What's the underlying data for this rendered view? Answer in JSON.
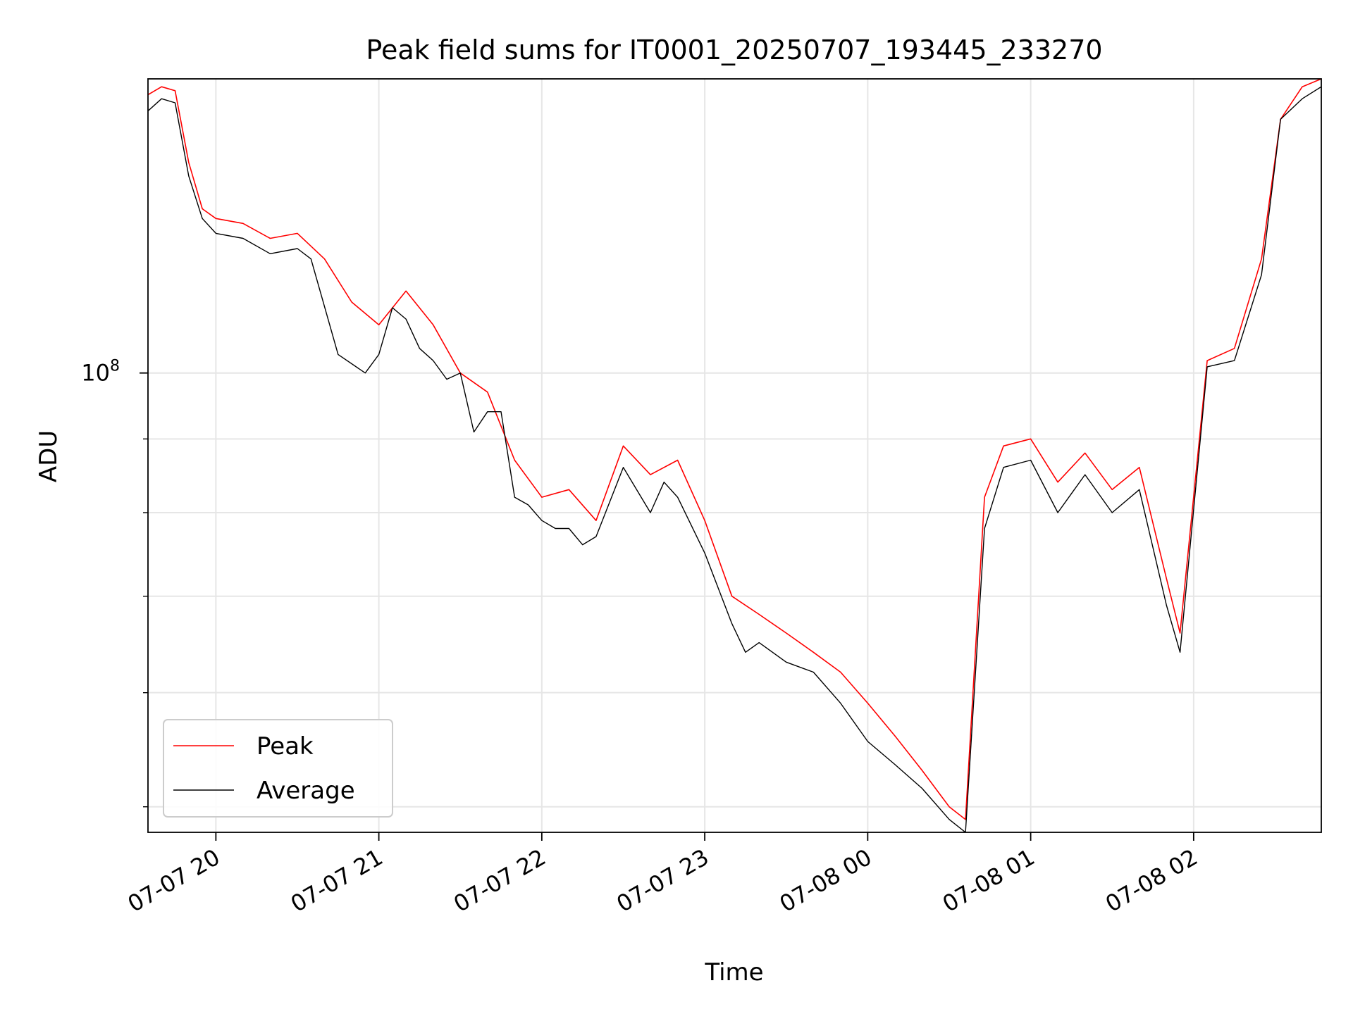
{
  "chart_data": {
    "type": "line",
    "title": "Peak field sums for IT0001_20250707_193445_233270",
    "xlabel": "Time",
    "ylabel": "ADU",
    "y_scale": "log",
    "ylim": [
      48000000,
      160000000
    ],
    "xlim": [
      "2025-07-07 19:35",
      "2025-07-08 02:47"
    ],
    "grid": true,
    "legend_position": "lower-left",
    "x_ticks": [
      {
        "t": "2025-07-07 20:00",
        "label": "07-07 20"
      },
      {
        "t": "2025-07-07 21:00",
        "label": "07-07 21"
      },
      {
        "t": "2025-07-07 22:00",
        "label": "07-07 22"
      },
      {
        "t": "2025-07-07 23:00",
        "label": "07-07 23"
      },
      {
        "t": "2025-07-08 00:00",
        "label": "07-08 00"
      },
      {
        "t": "2025-07-08 01:00",
        "label": "07-08 01"
      },
      {
        "t": "2025-07-08 02:00",
        "label": "07-08 02"
      }
    ],
    "y_major_ticks": [
      {
        "value": 100000000,
        "base": "10",
        "exp": "8"
      }
    ],
    "y_minor_ticks": [
      50000000,
      60000000,
      70000000,
      80000000,
      90000000,
      200000000
    ],
    "series": [
      {
        "name": "Peak",
        "color": "#ff0000",
        "points": [
          [
            "2025-07-07 19:35",
            156000000
          ],
          [
            "2025-07-07 19:40",
            158000000
          ],
          [
            "2025-07-07 19:45",
            157000000
          ],
          [
            "2025-07-07 19:50",
            140000000
          ],
          [
            "2025-07-07 19:55",
            130000000
          ],
          [
            "2025-07-07 20:00",
            128000000
          ],
          [
            "2025-07-07 20:10",
            127000000
          ],
          [
            "2025-07-07 20:20",
            124000000
          ],
          [
            "2025-07-07 20:30",
            125000000
          ],
          [
            "2025-07-07 20:40",
            120000000
          ],
          [
            "2025-07-07 20:50",
            112000000
          ],
          [
            "2025-07-07 21:00",
            108000000
          ],
          [
            "2025-07-07 21:10",
            114000000
          ],
          [
            "2025-07-07 21:20",
            108000000
          ],
          [
            "2025-07-07 21:30",
            100000000
          ],
          [
            "2025-07-07 21:40",
            97000000
          ],
          [
            "2025-07-07 21:50",
            87000000
          ],
          [
            "2025-07-07 22:00",
            82000000
          ],
          [
            "2025-07-07 22:10",
            83000000
          ],
          [
            "2025-07-07 22:20",
            79000000
          ],
          [
            "2025-07-07 22:30",
            89000000
          ],
          [
            "2025-07-07 22:40",
            85000000
          ],
          [
            "2025-07-07 22:50",
            87000000
          ],
          [
            "2025-07-07 23:00",
            79000000
          ],
          [
            "2025-07-07 23:10",
            70000000
          ],
          [
            "2025-07-07 23:20",
            68000000
          ],
          [
            "2025-07-07 23:30",
            66000000
          ],
          [
            "2025-07-07 23:40",
            64000000
          ],
          [
            "2025-07-07 23:50",
            62000000
          ],
          [
            "2025-07-08 00:00",
            59000000
          ],
          [
            "2025-07-08 00:10",
            56000000
          ],
          [
            "2025-07-08 00:20",
            53000000
          ],
          [
            "2025-07-08 00:30",
            50000000
          ],
          [
            "2025-07-08 00:36",
            49000000
          ],
          [
            "2025-07-08 00:43",
            82000000
          ],
          [
            "2025-07-08 00:50",
            89000000
          ],
          [
            "2025-07-08 01:00",
            90000000
          ],
          [
            "2025-07-08 01:10",
            84000000
          ],
          [
            "2025-07-08 01:20",
            88000000
          ],
          [
            "2025-07-08 01:30",
            83000000
          ],
          [
            "2025-07-08 01:40",
            86000000
          ],
          [
            "2025-07-08 01:50",
            72000000
          ],
          [
            "2025-07-08 01:55",
            66000000
          ],
          [
            "2025-07-08 02:05",
            102000000
          ],
          [
            "2025-07-08 02:15",
            104000000
          ],
          [
            "2025-07-08 02:25",
            120000000
          ],
          [
            "2025-07-08 02:32",
            150000000
          ],
          [
            "2025-07-08 02:40",
            158000000
          ],
          [
            "2025-07-08 02:47",
            160000000
          ]
        ]
      },
      {
        "name": "Average",
        "color": "#000000",
        "points": [
          [
            "2025-07-07 19:35",
            152000000
          ],
          [
            "2025-07-07 19:40",
            155000000
          ],
          [
            "2025-07-07 19:45",
            154000000
          ],
          [
            "2025-07-07 19:50",
            137000000
          ],
          [
            "2025-07-07 19:55",
            128000000
          ],
          [
            "2025-07-07 20:00",
            125000000
          ],
          [
            "2025-07-07 20:10",
            124000000
          ],
          [
            "2025-07-07 20:20",
            121000000
          ],
          [
            "2025-07-07 20:30",
            122000000
          ],
          [
            "2025-07-07 20:35",
            120000000
          ],
          [
            "2025-07-07 20:45",
            103000000
          ],
          [
            "2025-07-07 20:55",
            100000000
          ],
          [
            "2025-07-07 21:00",
            103000000
          ],
          [
            "2025-07-07 21:05",
            111000000
          ],
          [
            "2025-07-07 21:10",
            109000000
          ],
          [
            "2025-07-07 21:15",
            104000000
          ],
          [
            "2025-07-07 21:20",
            102000000
          ],
          [
            "2025-07-07 21:25",
            99000000
          ],
          [
            "2025-07-07 21:30",
            100000000
          ],
          [
            "2025-07-07 21:35",
            91000000
          ],
          [
            "2025-07-07 21:40",
            94000000
          ],
          [
            "2025-07-07 21:45",
            94000000
          ],
          [
            "2025-07-07 21:50",
            82000000
          ],
          [
            "2025-07-07 21:55",
            81000000
          ],
          [
            "2025-07-07 22:00",
            79000000
          ],
          [
            "2025-07-07 22:05",
            78000000
          ],
          [
            "2025-07-07 22:10",
            78000000
          ],
          [
            "2025-07-07 22:15",
            76000000
          ],
          [
            "2025-07-07 22:20",
            77000000
          ],
          [
            "2025-07-07 22:30",
            86000000
          ],
          [
            "2025-07-07 22:40",
            80000000
          ],
          [
            "2025-07-07 22:45",
            84000000
          ],
          [
            "2025-07-07 22:50",
            82000000
          ],
          [
            "2025-07-07 23:00",
            75000000
          ],
          [
            "2025-07-07 23:10",
            67000000
          ],
          [
            "2025-07-07 23:15",
            64000000
          ],
          [
            "2025-07-07 23:20",
            65000000
          ],
          [
            "2025-07-07 23:30",
            63000000
          ],
          [
            "2025-07-07 23:40",
            62000000
          ],
          [
            "2025-07-07 23:50",
            59000000
          ],
          [
            "2025-07-08 00:00",
            55500000
          ],
          [
            "2025-07-08 00:10",
            53500000
          ],
          [
            "2025-07-08 00:20",
            51500000
          ],
          [
            "2025-07-08 00:30",
            49000000
          ],
          [
            "2025-07-08 00:36",
            48000000
          ],
          [
            "2025-07-08 00:43",
            78000000
          ],
          [
            "2025-07-08 00:50",
            86000000
          ],
          [
            "2025-07-08 01:00",
            87000000
          ],
          [
            "2025-07-08 01:10",
            80000000
          ],
          [
            "2025-07-08 01:20",
            85000000
          ],
          [
            "2025-07-08 01:30",
            80000000
          ],
          [
            "2025-07-08 01:40",
            83000000
          ],
          [
            "2025-07-08 01:50",
            69000000
          ],
          [
            "2025-07-08 01:55",
            64000000
          ],
          [
            "2025-07-08 02:05",
            101000000
          ],
          [
            "2025-07-08 02:15",
            102000000
          ],
          [
            "2025-07-08 02:25",
            117000000
          ],
          [
            "2025-07-08 02:32",
            150000000
          ],
          [
            "2025-07-08 02:40",
            155000000
          ],
          [
            "2025-07-08 02:47",
            158000000
          ]
        ]
      }
    ]
  }
}
